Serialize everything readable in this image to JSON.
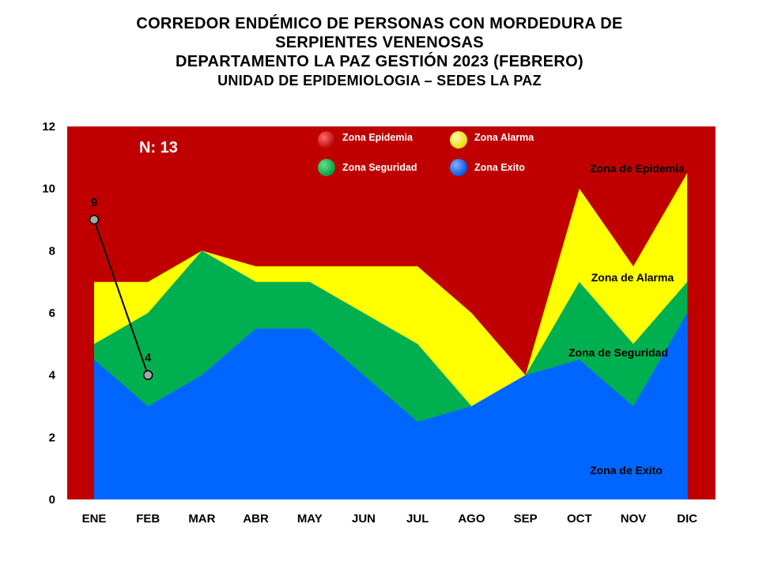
{
  "header": {
    "line1": "CORREDOR ENDÉMICO DE PERSONAS CON MORDEDURA DE",
    "line2": "SERPIENTES VENENOSAS",
    "line3": "DEPARTAMENTO LA PAZ GESTIÓN 2023 (FEBRERO)",
    "line4": "UNIDAD DE EPIDEMIOLOGIA – SEDES LA PAZ"
  },
  "chart_data": {
    "type": "area",
    "categories": [
      "ENE",
      "FEB",
      "MAR",
      "ABR",
      "MAY",
      "JUN",
      "JUL",
      "AGO",
      "SEP",
      "OCT",
      "NOV",
      "DIC"
    ],
    "ylim": [
      0,
      12
    ],
    "yticks": [
      0,
      2,
      4,
      6,
      8,
      10,
      12
    ],
    "grid": false,
    "series": [
      {
        "name": "Zona Epidemia",
        "color": "#c00000",
        "values": [
          12,
          12,
          12,
          12,
          12,
          12,
          12,
          12,
          12,
          12,
          12,
          12
        ]
      },
      {
        "name": "Zona Alarma",
        "color": "#ffff00",
        "values": [
          7,
          7,
          8,
          7.5,
          7.5,
          7.5,
          7.5,
          6,
          4,
          10,
          7.5,
          10.5
        ]
      },
      {
        "name": "Zona Seguridad",
        "color": "#00b050",
        "values": [
          5,
          6,
          8,
          7,
          7,
          6,
          5,
          3,
          4,
          7,
          5,
          7
        ]
      },
      {
        "name": "Zona Exito",
        "color": "#0066ff",
        "values": [
          4.5,
          3,
          4,
          5.5,
          5.5,
          4,
          2.5,
          3,
          4,
          4.5,
          3,
          6
        ]
      }
    ],
    "cases": {
      "color": "#000000",
      "marker_color": "#a6a6a6",
      "values": [
        9,
        4
      ],
      "labels": [
        "9",
        "4"
      ]
    },
    "annotations": {
      "n_label": "N: 13",
      "zona_epidemia": "Zona de  Epidemia",
      "zona_alarma": "Zona de Alarma",
      "zona_seguridad": "Zona de Seguridad",
      "zona_exito": "Zona de Exito"
    },
    "legend_placement": "top-center"
  }
}
